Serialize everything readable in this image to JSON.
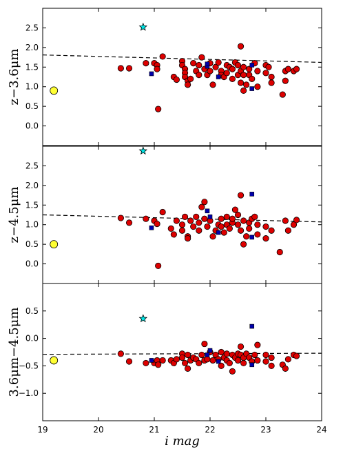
{
  "chart_data": {
    "type": "scatter",
    "shared_x": {
      "xlabel": "i mag",
      "xlim": [
        19,
        24
      ],
      "xticks": [
        "19",
        "20",
        "21",
        "22",
        "23",
        "24"
      ]
    },
    "panels": [
      {
        "ylabel": "z−3.6μm",
        "ylim": [
          -0.5,
          3.0
        ],
        "yticks": [
          "0.0",
          "0.5",
          "1.0",
          "1.5",
          "2.0",
          "2.5"
        ],
        "fit_line": [
          [
            19,
            1.81
          ],
          [
            24,
            1.62
          ]
        ],
        "yellow_circle": [
          [
            19.2,
            0.9
          ]
        ],
        "cyan_star": [
          [
            20.8,
            2.52
          ]
        ],
        "blue_squares": [
          [
            20.95,
            1.33
          ],
          [
            21.95,
            1.52
          ],
          [
            21.95,
            1.58
          ],
          [
            22.15,
            1.25
          ],
          [
            22.75,
            0.95
          ],
          [
            22.75,
            1.55
          ]
        ],
        "red_circles": [
          [
            20.4,
            1.47
          ],
          [
            20.55,
            1.47
          ],
          [
            20.85,
            1.6
          ],
          [
            21.0,
            1.6
          ],
          [
            21.05,
            1.55
          ],
          [
            21.05,
            1.45
          ],
          [
            21.15,
            1.77
          ],
          [
            21.07,
            0.43
          ],
          [
            21.35,
            1.25
          ],
          [
            21.4,
            1.18
          ],
          [
            21.5,
            1.65
          ],
          [
            21.5,
            1.55
          ],
          [
            21.55,
            1.45
          ],
          [
            21.55,
            1.35
          ],
          [
            21.55,
            1.25
          ],
          [
            21.6,
            1.15
          ],
          [
            21.6,
            1.05
          ],
          [
            21.65,
            1.2
          ],
          [
            21.7,
            1.6
          ],
          [
            21.75,
            1.4
          ],
          [
            21.8,
            1.3
          ],
          [
            21.8,
            1.55
          ],
          [
            21.85,
            1.75
          ],
          [
            21.9,
            1.45
          ],
          [
            21.95,
            1.3
          ],
          [
            22.0,
            1.6
          ],
          [
            22.0,
            1.4
          ],
          [
            22.05,
            1.05
          ],
          [
            22.1,
            1.5
          ],
          [
            22.15,
            1.62
          ],
          [
            22.2,
            1.4
          ],
          [
            22.2,
            1.3
          ],
          [
            22.25,
            1.25
          ],
          [
            22.3,
            1.55
          ],
          [
            22.3,
            1.35
          ],
          [
            22.35,
            1.5
          ],
          [
            22.4,
            1.45
          ],
          [
            22.4,
            1.2
          ],
          [
            22.45,
            1.62
          ],
          [
            22.5,
            1.55
          ],
          [
            22.5,
            1.3
          ],
          [
            22.55,
            1.4
          ],
          [
            22.55,
            1.1
          ],
          [
            22.55,
            2.03
          ],
          [
            22.6,
            0.9
          ],
          [
            22.6,
            1.5
          ],
          [
            22.6,
            1.3
          ],
          [
            22.65,
            1.05
          ],
          [
            22.7,
            1.45
          ],
          [
            22.7,
            1.3
          ],
          [
            22.75,
            1.2
          ],
          [
            22.8,
            1.6
          ],
          [
            22.85,
            1.0
          ],
          [
            22.85,
            1.4
          ],
          [
            23.0,
            1.55
          ],
          [
            23.0,
            1.35
          ],
          [
            23.05,
            1.5
          ],
          [
            23.1,
            1.25
          ],
          [
            23.1,
            1.1
          ],
          [
            23.3,
            0.8
          ],
          [
            23.35,
            1.4
          ],
          [
            23.35,
            1.15
          ],
          [
            23.4,
            1.45
          ],
          [
            23.5,
            1.4
          ],
          [
            23.55,
            1.45
          ]
        ]
      },
      {
        "ylabel": "z−4.5μm",
        "ylim": [
          -0.5,
          3.0
        ],
        "yticks": [
          "0.0",
          "0.5",
          "1.0",
          "1.5",
          "2.0",
          "2.5"
        ],
        "fit_line": [
          [
            19,
            1.25
          ],
          [
            24,
            1.07
          ]
        ],
        "yellow_circle": [
          [
            19.2,
            0.5
          ]
        ],
        "cyan_star": [
          [
            20.8,
            2.88
          ]
        ],
        "blue_squares": [
          [
            20.95,
            0.92
          ],
          [
            21.95,
            1.35
          ],
          [
            22.0,
            1.2
          ],
          [
            22.15,
            0.8
          ],
          [
            22.75,
            0.68
          ],
          [
            22.75,
            1.78
          ]
        ],
        "red_circles": [
          [
            20.4,
            1.17
          ],
          [
            20.55,
            1.05
          ],
          [
            20.85,
            1.15
          ],
          [
            21.0,
            1.1
          ],
          [
            21.05,
            1.02
          ],
          [
            21.07,
            -0.05
          ],
          [
            21.15,
            1.32
          ],
          [
            21.3,
            0.9
          ],
          [
            21.35,
            0.75
          ],
          [
            21.4,
            1.1
          ],
          [
            21.5,
            1.0
          ],
          [
            21.5,
            0.85
          ],
          [
            21.55,
            1.2
          ],
          [
            21.6,
            0.7
          ],
          [
            21.6,
            0.65
          ],
          [
            21.65,
            1.1
          ],
          [
            21.7,
            0.95
          ],
          [
            21.75,
            1.2
          ],
          [
            21.8,
            1.05
          ],
          [
            21.8,
            0.85
          ],
          [
            21.85,
            1.45
          ],
          [
            21.9,
            1.58
          ],
          [
            21.9,
            1.15
          ],
          [
            21.95,
            0.95
          ],
          [
            22.0,
            1.1
          ],
          [
            22.05,
            0.7
          ],
          [
            22.1,
            0.85
          ],
          [
            22.15,
            1.0
          ],
          [
            22.2,
            0.95
          ],
          [
            22.2,
            1.15
          ],
          [
            22.25,
            0.8
          ],
          [
            22.3,
            1.0
          ],
          [
            22.3,
            1.2
          ],
          [
            22.35,
            0.9
          ],
          [
            22.4,
            1.05
          ],
          [
            22.4,
            1.15
          ],
          [
            22.45,
            1.38
          ],
          [
            22.5,
            1.0
          ],
          [
            22.5,
            1.25
          ],
          [
            22.55,
            1.75
          ],
          [
            22.55,
            0.85
          ],
          [
            22.6,
            1.1
          ],
          [
            22.6,
            0.5
          ],
          [
            22.65,
            0.7
          ],
          [
            22.7,
            1.05
          ],
          [
            22.7,
            0.9
          ],
          [
            22.75,
            1.15
          ],
          [
            22.8,
            1.2
          ],
          [
            22.85,
            0.75
          ],
          [
            22.85,
            1.0
          ],
          [
            23.0,
            0.95
          ],
          [
            23.0,
            0.65
          ],
          [
            23.1,
            0.85
          ],
          [
            23.25,
            0.3
          ],
          [
            23.35,
            1.1
          ],
          [
            23.4,
            0.85
          ],
          [
            23.5,
            1.0
          ],
          [
            23.55,
            1.12
          ]
        ]
      },
      {
        "ylabel": "3.6μm−4.5μm",
        "ylim": [
          -1.5,
          1.0
        ],
        "yticks": [
          "−1.0",
          "−0.5",
          "0.0",
          "0.5"
        ],
        "fit_line": [
          [
            19,
            -0.29
          ],
          [
            24,
            -0.27
          ]
        ],
        "yellow_circle": [
          [
            19.2,
            -0.4
          ]
        ],
        "cyan_star": [
          [
            20.8,
            0.36
          ]
        ],
        "blue_squares": [
          [
            20.95,
            -0.4
          ],
          [
            21.95,
            -0.3
          ],
          [
            22.0,
            -0.22
          ],
          [
            22.15,
            -0.42
          ],
          [
            22.75,
            -0.48
          ],
          [
            22.75,
            0.22
          ]
        ],
        "red_circles": [
          [
            20.4,
            -0.28
          ],
          [
            20.55,
            -0.42
          ],
          [
            20.85,
            -0.45
          ],
          [
            21.0,
            -0.45
          ],
          [
            21.05,
            -0.4
          ],
          [
            21.07,
            -0.48
          ],
          [
            21.15,
            -0.4
          ],
          [
            21.3,
            -0.4
          ],
          [
            21.35,
            -0.45
          ],
          [
            21.4,
            -0.38
          ],
          [
            21.5,
            -0.28
          ],
          [
            21.5,
            -0.35
          ],
          [
            21.55,
            -0.45
          ],
          [
            21.6,
            -0.55
          ],
          [
            21.6,
            -0.3
          ],
          [
            21.65,
            -0.4
          ],
          [
            21.7,
            -0.35
          ],
          [
            21.75,
            -0.38
          ],
          [
            21.8,
            -0.45
          ],
          [
            21.85,
            -0.3
          ],
          [
            21.9,
            -0.1
          ],
          [
            21.9,
            -0.4
          ],
          [
            21.95,
            -0.38
          ],
          [
            22.0,
            -0.25
          ],
          [
            22.05,
            -0.4
          ],
          [
            22.1,
            -0.3
          ],
          [
            22.15,
            -0.38
          ],
          [
            22.2,
            -0.25
          ],
          [
            22.2,
            -0.5
          ],
          [
            22.25,
            -0.35
          ],
          [
            22.3,
            -0.4
          ],
          [
            22.3,
            -0.28
          ],
          [
            22.35,
            -0.45
          ],
          [
            22.4,
            -0.3
          ],
          [
            22.4,
            -0.6
          ],
          [
            22.45,
            -0.35
          ],
          [
            22.5,
            -0.28
          ],
          [
            22.5,
            -0.4
          ],
          [
            22.55,
            -0.3
          ],
          [
            22.55,
            -0.15
          ],
          [
            22.6,
            -0.45
          ],
          [
            22.6,
            -0.35
          ],
          [
            22.65,
            -0.28
          ],
          [
            22.7,
            -0.35
          ],
          [
            22.75,
            -0.42
          ],
          [
            22.8,
            -0.3
          ],
          [
            22.85,
            -0.4
          ],
          [
            22.85,
            -0.12
          ],
          [
            23.0,
            -0.3
          ],
          [
            23.0,
            -0.42
          ],
          [
            23.1,
            -0.35
          ],
          [
            23.1,
            -0.5
          ],
          [
            23.3,
            -0.48
          ],
          [
            23.35,
            -0.55
          ],
          [
            23.4,
            -0.38
          ],
          [
            23.5,
            -0.3
          ],
          [
            23.55,
            -0.32
          ]
        ]
      }
    ]
  }
}
